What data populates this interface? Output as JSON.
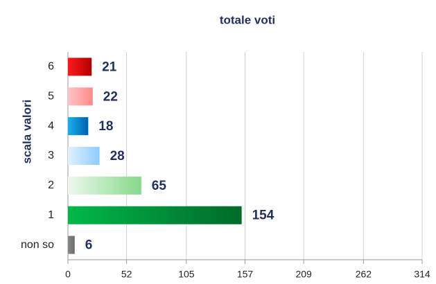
{
  "chart_data": {
    "type": "hbar",
    "title": "totale voti",
    "y_label": "scala valori",
    "categories": [
      "6",
      "5",
      "4",
      "3",
      "2",
      "1",
      "non so"
    ],
    "values": [
      21,
      22,
      18,
      28,
      65,
      154,
      6
    ],
    "colors": [
      [
        "#ff1a1a",
        "#b00000"
      ],
      [
        "#ffc4c4",
        "#ff8a8a"
      ],
      [
        "#1ab0f0",
        "#0060b0"
      ],
      [
        "#e0f2ff",
        "#8cccff"
      ],
      [
        "#eef8ee",
        "#86d98a"
      ],
      [
        "#00b84a",
        "#006a2a"
      ],
      [
        "#8a8a8a",
        "#6a6a6a"
      ]
    ],
    "xlim": [
      0,
      314
    ],
    "xticks": [
      0,
      52,
      105,
      157,
      209,
      262,
      314
    ],
    "grid": true
  }
}
